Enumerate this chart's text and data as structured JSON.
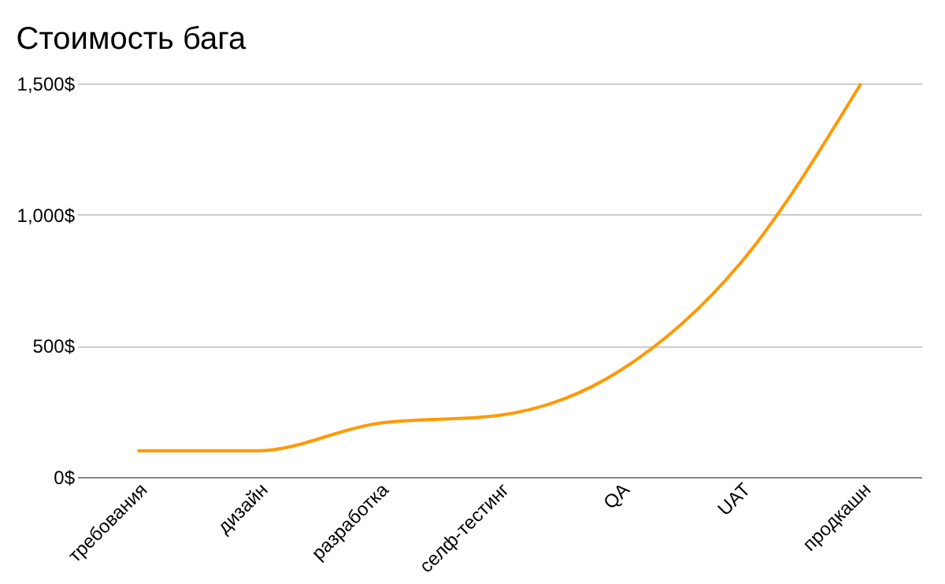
{
  "chart_data": {
    "type": "line",
    "title": "Стоимость бага",
    "categories": [
      "требования",
      "дизайн",
      "разработка",
      "селф-тестинг",
      "QA",
      "UAT",
      "продкашн"
    ],
    "series": [
      {
        "color": "#ff9900",
        "values": [
          100,
          100,
          205,
          235,
          405,
          815,
          1500
        ]
      }
    ],
    "ylim": [
      0,
      1500
    ],
    "yticks": [
      {
        "value": 0,
        "label": "0$"
      },
      {
        "value": 500,
        "label": "500$"
      },
      {
        "value": 1000,
        "label": "1,000$"
      },
      {
        "value": 1500,
        "label": "1,500$"
      }
    ],
    "grid": "y",
    "marker": "none",
    "line_style": "solid"
  }
}
